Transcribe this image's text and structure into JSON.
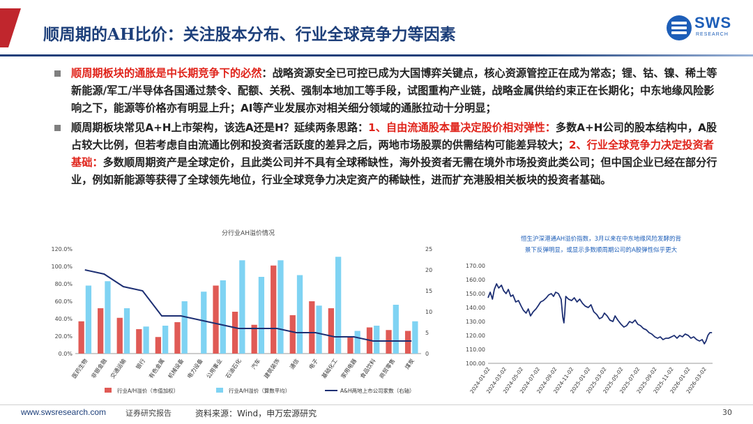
{
  "header": {
    "title": "顺周期的AH比价：关注股本分布、行业全球竞争力等因素",
    "logo_text": "SWS",
    "logo_sub": "RESEARCH"
  },
  "bullets": [
    {
      "red": "顺周期板块的通胀是中长期竞争下的必然",
      "text": "：战略资源安全已可控已成为大国博弈关键点，核心资源管控正在成为常态；锂、钴、镍、稀土等新能源/军工/半导体各国通过禁令、配额、关税、强制本地加工等手段，试图重构产业链，战略金属供给约束正在长期化；中东地缘风险影响之下，能源等价格亦有明显上升；AI等产业发展亦对相关细分领域的通胀拉动十分明显；"
    },
    {
      "p1": "顺周期板块常见A+H上市架构，该选A还是H？延续两条思路：",
      "red1": "1、自由流通股本量决定股价相对弹性：",
      "p2": "多数A+H公司的股本结构中，A股占较大比例，但若考虑自由流通比例和投资者活跃度的差异之后，两地市场股票的供需结构可能差异较大；",
      "red2": "2、行业全球竞争力决定投资者基础：",
      "p3": "多数顺周期资产是全球定价，且此类公司并不具有全球稀缺性，海外投资者无需在境外市场投资此类公司；但中国企业已经在部分行业，例如新能源等获得了全球领先地位，行业全球竞争力决定资产的稀缺性，进而扩充港股相关板块的投资者基础。"
    }
  ],
  "chart_data": [
    {
      "type": "bar",
      "title": "分行业AH溢价情况",
      "categories": [
        "医药生物",
        "非银金融",
        "交通运输",
        "银行",
        "有色金属",
        "机械设备",
        "电力设备",
        "公用事业",
        "石油石化",
        "汽车",
        "建筑装饰",
        "通信",
        "电子",
        "基础化工",
        "家用电器",
        "食品饮料",
        "商贸零售",
        "煤炭"
      ],
      "series": [
        {
          "name": "行业A/H溢价（市值加权）",
          "axis": "left",
          "color": "#e05a55",
          "values": [
            37,
            52,
            41,
            28,
            19,
            36,
            0,
            78,
            48,
            33,
            101,
            44,
            60,
            52,
            19,
            30,
            27,
            26
          ]
        },
        {
          "name": "行业A/H溢价（算数平均）",
          "axis": "left",
          "color": "#7fd3f3",
          "values": [
            78,
            83,
            52,
            31,
            32,
            60,
            71,
            84,
            107,
            88,
            107,
            90,
            55,
            111,
            26,
            32,
            56,
            37
          ]
        },
        {
          "name": "A&H两地上市公司家数（右轴）",
          "axis": "right",
          "type": "line",
          "color": "#1d2f73",
          "values": [
            20,
            19,
            16,
            15,
            9,
            9,
            8,
            7,
            6,
            6,
            6,
            5,
            5,
            4,
            4,
            3,
            3,
            3
          ]
        }
      ],
      "yticks_left": [
        "0.0%",
        "20.0%",
        "40.0%",
        "60.0%",
        "80.0%",
        "100.0%",
        "120.0%"
      ],
      "yticks_right": [
        "0",
        "5",
        "10",
        "15",
        "20",
        "25"
      ],
      "ylim_left": [
        0,
        120
      ],
      "ylim_right": [
        0,
        25
      ],
      "legend_position": "bottom"
    },
    {
      "type": "line",
      "title_line1": "恒生沪深港通AH溢价指数，3月以来在中东地缘风险发酵的背",
      "title_line2": "景下反弹明显，或显示多数顺周期公司的A股弹性似乎更大",
      "x_ticks": [
        "2024-01-02",
        "2024-03-02",
        "2024-05-02",
        "2024-07-02",
        "2024-09-02",
        "2024-11-02",
        "2025-01-02",
        "2025-03-02",
        "2025-05-02",
        "2025-07-02",
        "2025-09-02",
        "2025-11-02",
        "2026-01-02",
        "2026-03-02"
      ],
      "yticks": [
        "100.00",
        "110.00",
        "120.00",
        "130.00",
        "140.00",
        "150.00",
        "160.00",
        "170.00"
      ],
      "ylim": [
        100,
        170
      ],
      "xlim": [
        "2024-01-02",
        "2026-04-01"
      ],
      "color": "#1d2f73",
      "series_points": [
        [
          "2024-01-02",
          147
        ],
        [
          "2024-01-10",
          151
        ],
        [
          "2024-01-18",
          146
        ],
        [
          "2024-01-25",
          153
        ],
        [
          "2024-02-02",
          157
        ],
        [
          "2024-02-10",
          154
        ],
        [
          "2024-02-20",
          156
        ],
        [
          "2024-02-28",
          152
        ],
        [
          "2024-03-08",
          150
        ],
        [
          "2024-03-16",
          153
        ],
        [
          "2024-03-25",
          148
        ],
        [
          "2024-04-02",
          149
        ],
        [
          "2024-04-12",
          144
        ],
        [
          "2024-04-22",
          145
        ],
        [
          "2024-05-02",
          141
        ],
        [
          "2024-05-10",
          138
        ],
        [
          "2024-05-20",
          136
        ],
        [
          "2024-05-28",
          139
        ],
        [
          "2024-06-05",
          134
        ],
        [
          "2024-06-15",
          137
        ],
        [
          "2024-06-25",
          139
        ],
        [
          "2024-07-02",
          141
        ],
        [
          "2024-07-12",
          144
        ],
        [
          "2024-07-22",
          145
        ],
        [
          "2024-08-02",
          147
        ],
        [
          "2024-08-10",
          149
        ],
        [
          "2024-08-20",
          150
        ],
        [
          "2024-08-28",
          148
        ],
        [
          "2024-09-05",
          151
        ],
        [
          "2024-09-15",
          150
        ],
        [
          "2024-09-25",
          146
        ],
        [
          "2024-10-01",
          133
        ],
        [
          "2024-10-05",
          129
        ],
        [
          "2024-10-08",
          136
        ],
        [
          "2024-10-12",
          148
        ],
        [
          "2024-10-22",
          146
        ],
        [
          "2024-11-02",
          145
        ],
        [
          "2024-11-12",
          147
        ],
        [
          "2024-11-22",
          144
        ],
        [
          "2024-12-02",
          146
        ],
        [
          "2024-12-12",
          143
        ],
        [
          "2024-12-22",
          141
        ],
        [
          "2025-01-02",
          140
        ],
        [
          "2025-01-12",
          142
        ],
        [
          "2025-01-22",
          137
        ],
        [
          "2025-02-02",
          135
        ],
        [
          "2025-02-12",
          132
        ],
        [
          "2025-02-22",
          133
        ],
        [
          "2025-03-02",
          136
        ],
        [
          "2025-03-12",
          134
        ],
        [
          "2025-03-22",
          131
        ],
        [
          "2025-04-02",
          130
        ],
        [
          "2025-04-10",
          134
        ],
        [
          "2025-04-20",
          131
        ],
        [
          "2025-05-02",
          128
        ],
        [
          "2025-05-12",
          126
        ],
        [
          "2025-05-22",
          127
        ],
        [
          "2025-06-02",
          130
        ],
        [
          "2025-06-12",
          129
        ],
        [
          "2025-06-22",
          131
        ],
        [
          "2025-07-02",
          128
        ],
        [
          "2025-07-12",
          127
        ],
        [
          "2025-07-22",
          125
        ],
        [
          "2025-08-02",
          124
        ],
        [
          "2025-08-12",
          122
        ],
        [
          "2025-08-22",
          121
        ],
        [
          "2025-09-02",
          119
        ],
        [
          "2025-09-12",
          118
        ],
        [
          "2025-09-22",
          119
        ],
        [
          "2025-10-02",
          117
        ],
        [
          "2025-10-12",
          118
        ],
        [
          "2025-10-22",
          118
        ],
        [
          "2025-11-02",
          119
        ],
        [
          "2025-11-12",
          120
        ],
        [
          "2025-11-22",
          118
        ],
        [
          "2025-12-02",
          120
        ],
        [
          "2025-12-12",
          119
        ],
        [
          "2025-12-22",
          121
        ],
        [
          "2026-01-02",
          120
        ],
        [
          "2026-01-12",
          118
        ],
        [
          "2026-01-22",
          119
        ],
        [
          "2026-02-02",
          117
        ],
        [
          "2026-02-12",
          116
        ],
        [
          "2026-02-22",
          117
        ],
        [
          "2026-03-02",
          114
        ],
        [
          "2026-03-08",
          116
        ],
        [
          "2026-03-15",
          120
        ],
        [
          "2026-03-22",
          122
        ],
        [
          "2026-03-30",
          122
        ]
      ]
    }
  ],
  "footer": {
    "url": "www.swsresearch.com",
    "report": "证券研究报告",
    "source": "资料来源：Wind，申万宏源研究",
    "page": "30"
  }
}
